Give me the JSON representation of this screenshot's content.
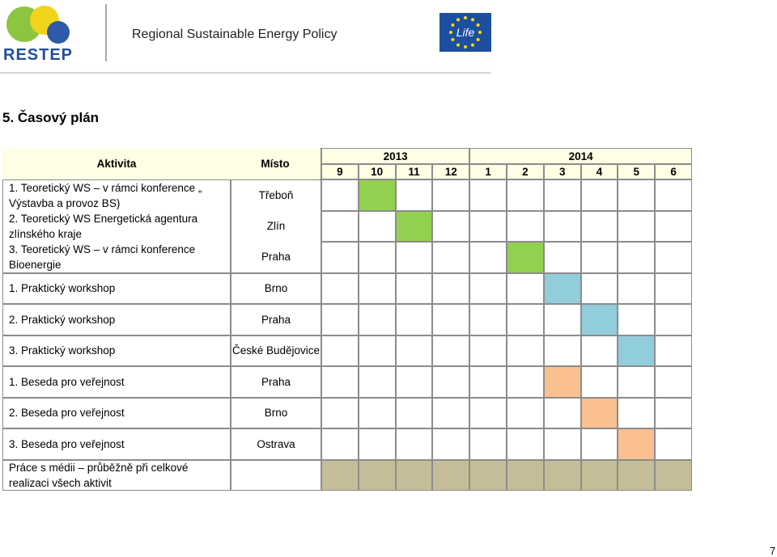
{
  "header": {
    "logo_text": "RESTEP",
    "title": "Regional Sustainable Energy Policy",
    "eu_logo_text": "Life"
  },
  "heading": "5.  Časový plán",
  "table": {
    "columns": {
      "activity": "Aktivita",
      "place": "Místo"
    },
    "years": [
      "2013",
      "2014"
    ],
    "months": [
      9,
      10,
      11,
      12,
      1,
      2,
      3,
      4,
      5,
      6
    ],
    "rows": [
      {
        "activity": "1. Teoretický WS – v rámci konference „ Výstavba a provoz BS)",
        "place": "Třeboň",
        "months": [
          10
        ],
        "color": "#92d050"
      },
      {
        "activity": "2. Teoretický WS  Energetická agentura zlínského kraje",
        "place": "Zlín",
        "months": [
          11
        ],
        "color": "#92d050"
      },
      {
        "activity": "3. Teoretický WS – v rámci konference Bioenergie",
        "place": "Praha",
        "months": [
          2
        ],
        "color": "#92d050"
      },
      {
        "activity": "1. Praktický workshop",
        "place": "Brno",
        "months": [
          3
        ],
        "color": "#92cddc"
      },
      {
        "activity": "2.  Praktický workshop",
        "place": "Praha",
        "months": [
          4
        ],
        "color": "#92cddc"
      },
      {
        "activity": "3.  Praktický workshop",
        "place": "České Budějovice",
        "months": [
          5
        ],
        "color": "#92cddc"
      },
      {
        "activity": "1. Beseda pro veřejnost",
        "place": "Praha",
        "months": [
          3
        ],
        "color": "#fac090"
      },
      {
        "activity": "2. Beseda pro veřejnost",
        "place": "Brno",
        "months": [
          4
        ],
        "color": "#fac090"
      },
      {
        "activity": "3. Beseda pro veřejnost",
        "place": "Ostrava",
        "months": [
          5
        ],
        "color": "#fac090"
      },
      {
        "activity": "Práce s médii – průběžně při celkové realizaci všech aktivit",
        "months": [
          9,
          10,
          11,
          12,
          1,
          2,
          3,
          4,
          5,
          6
        ],
        "color": "#c4bd97"
      }
    ]
  },
  "page_number": "7"
}
